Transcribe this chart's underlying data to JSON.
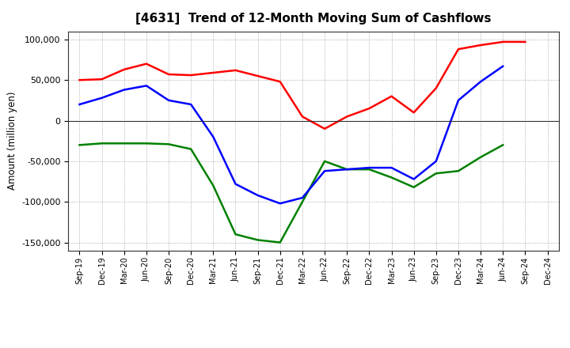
{
  "title": "[4631]  Trend of 12-Month Moving Sum of Cashflows",
  "ylabel": "Amount (million yen)",
  "xlabels": [
    "Sep-19",
    "Dec-19",
    "Mar-20",
    "Jun-20",
    "Sep-20",
    "Dec-20",
    "Mar-21",
    "Jun-21",
    "Sep-21",
    "Dec-21",
    "Mar-22",
    "Jun-22",
    "Sep-22",
    "Dec-22",
    "Mar-23",
    "Jun-23",
    "Sep-23",
    "Dec-23",
    "Mar-24",
    "Jun-24",
    "Sep-24",
    "Dec-24"
  ],
  "operating": [
    50000,
    51000,
    63000,
    70000,
    57000,
    56000,
    59000,
    62000,
    55000,
    48000,
    5000,
    -10000,
    5000,
    15000,
    30000,
    10000,
    40000,
    88000,
    93000,
    97000,
    97000,
    null
  ],
  "investing": [
    -30000,
    -28000,
    -28000,
    -28000,
    -29000,
    -35000,
    -80000,
    -140000,
    -147000,
    -150000,
    -100000,
    -50000,
    -60000,
    -60000,
    -70000,
    -82000,
    -65000,
    -62000,
    -45000,
    -30000,
    null,
    null
  ],
  "free": [
    20000,
    28000,
    38000,
    43000,
    25000,
    20000,
    -20000,
    -78000,
    -92000,
    -102000,
    -95000,
    -62000,
    -60000,
    -58000,
    -58000,
    -72000,
    -50000,
    25000,
    48000,
    67000,
    null,
    null
  ],
  "ylim": [
    -160000,
    110000
  ],
  "yticks": [
    -150000,
    -100000,
    -50000,
    0,
    50000,
    100000
  ],
  "colors": {
    "operating": "#ff0000",
    "investing": "#008000",
    "free": "#0000ff"
  },
  "background": "#ffffff",
  "grid_color": "#999999"
}
